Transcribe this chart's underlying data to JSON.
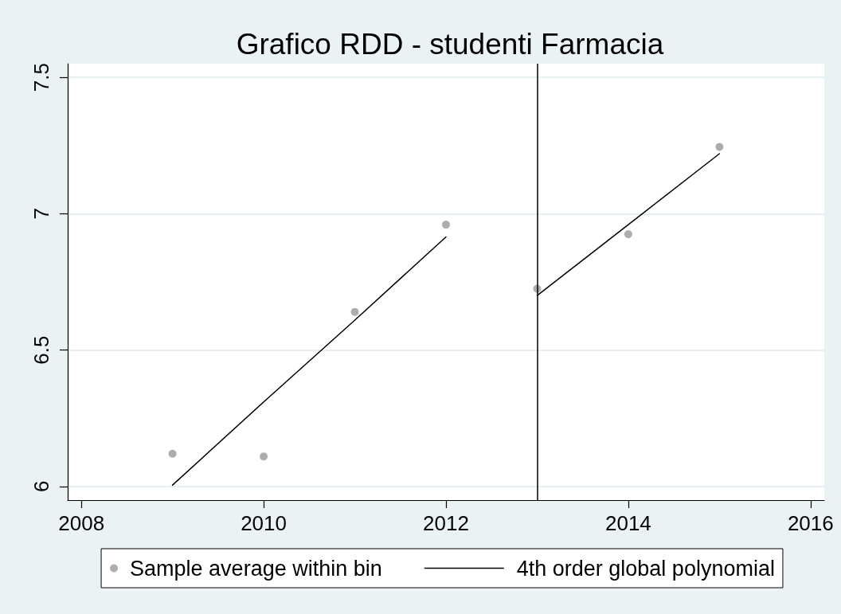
{
  "chart_data": {
    "type": "scatter",
    "title": "Grafico RDD - studenti Farmacia",
    "series": [
      {
        "name": "Sample average within bin",
        "marker": "circle",
        "color": "#999999",
        "x": [
          2009,
          2010,
          2011,
          2012,
          2013,
          2014,
          2015
        ],
        "values": [
          6.12,
          6.11,
          6.64,
          6.96,
          6.725,
          6.925,
          7.245
        ]
      },
      {
        "name": "4th order global polynomial",
        "type": "line",
        "marker": "none",
        "color": "#000000",
        "x": [
          2009,
          2010,
          2011,
          2012,
          null,
          2013,
          2014,
          2015
        ],
        "values": [
          6.005,
          6.31,
          6.61,
          6.915,
          null,
          6.7,
          6.96,
          7.22
        ]
      }
    ],
    "xlim": [
      2007.85,
      2016.15
    ],
    "xticks": [
      2008,
      2010,
      2012,
      2014,
      2016
    ],
    "ylim": [
      5.95,
      7.55
    ],
    "yticks": [
      6,
      6.5,
      7,
      7.5
    ],
    "ref_lines": [
      {
        "axis": "x",
        "value": 2013,
        "color": "#000000"
      }
    ],
    "grid": "y",
    "legend": "bottom"
  }
}
